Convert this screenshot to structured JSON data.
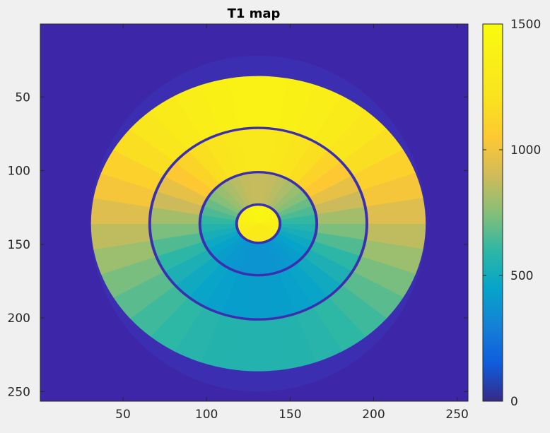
{
  "chart_data": {
    "type": "heatmap",
    "title": "T1 map",
    "xlabel": "",
    "ylabel": "",
    "x_range": [
      0.5,
      256.5
    ],
    "y_range": [
      0.5,
      256.5
    ],
    "y_direction": "reversed",
    "x_ticks": [
      50,
      100,
      150,
      200,
      250
    ],
    "y_ticks": [
      50,
      100,
      150,
      200,
      250
    ],
    "colormap": "parula",
    "colorbar": {
      "range": [
        0,
        1500
      ],
      "ticks": [
        0,
        500,
        1000,
        1500
      ],
      "placement": "right"
    },
    "background_value": 0,
    "center": [
      131,
      136
    ],
    "regions": [
      {
        "name": "outer ring",
        "radius_range": [
          66,
          100
        ],
        "value_min": 560,
        "value_max": 1400
      },
      {
        "name": "middle ring",
        "radius_range": [
          36,
          64
        ],
        "value_min": 420,
        "value_max": 1280
      },
      {
        "name": "inner ring",
        "radius_range": [
          14,
          34
        ],
        "value_min": 380,
        "value_max": 880
      },
      {
        "name": "center disk",
        "radius_range": [
          0,
          12
        ],
        "value_min": 1300,
        "value_max": 1440
      }
    ],
    "colors": {
      "background": "#3e26a8",
      "separator": "#3b2eb0",
      "low": "#352a87",
      "high": "#f9fb0e"
    }
  }
}
